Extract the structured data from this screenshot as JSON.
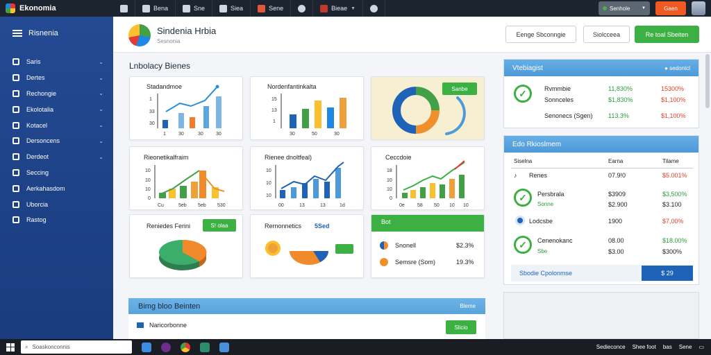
{
  "topbar": {
    "app_name": "Ekonomia",
    "tabs": [
      {
        "label": "",
        "icon": "tools-icon"
      },
      {
        "label": "Bena",
        "icon": "app-icon"
      },
      {
        "label": "Sne",
        "icon": "app-icon"
      },
      {
        "label": "Siea",
        "icon": "app-icon"
      },
      {
        "label": "Sene",
        "icon": "app-icon"
      },
      {
        "label": "",
        "icon": "circle-icon"
      },
      {
        "label": "Bieae",
        "icon": "app-icon"
      },
      {
        "label": "",
        "icon": "gear-icon"
      }
    ],
    "search_label": "Senhole",
    "action_label": "Gaen",
    "colors": {
      "bar": "#1c2430",
      "accent": "#f05a22"
    }
  },
  "sidebar": {
    "title": "Risnenia",
    "items": [
      {
        "label": "Saris"
      },
      {
        "label": "Dertes"
      },
      {
        "label": "Rechongie"
      },
      {
        "label": "Ekolotalia"
      },
      {
        "label": "Kotacel"
      },
      {
        "label": "Dersoncens"
      },
      {
        "label": "Derdeot"
      },
      {
        "label": "Seccing"
      },
      {
        "label": "Aerkahasdom"
      },
      {
        "label": "Uborcia"
      },
      {
        "label": "Rastog"
      }
    ],
    "colors": {
      "bg": "#234a93"
    }
  },
  "header": {
    "title": "Sindenia Hrbia",
    "subtitle": "Sesnonia",
    "btn1": "Eenge Sbconngie",
    "btn2": "Siolcceea",
    "btn3": "Re toal Sbeiten"
  },
  "section": {
    "title": "Lnbolacy Bienes"
  },
  "cards": {
    "c1": {
      "title": "Stadandmoe",
      "ticks": [
        "1",
        "33",
        "30"
      ],
      "xticks": [
        "1",
        "30",
        "30",
        "30"
      ]
    },
    "c2": {
      "title": "Nordenfantinkalta",
      "ticks": [
        "15",
        "13",
        "1"
      ],
      "xticks": [
        "30",
        "50",
        "30"
      ]
    },
    "c3": {
      "chip": "Sanbe"
    },
    "c4": {
      "title": "Rieonetikalfraim",
      "ticks": [
        "10",
        "10",
        "10",
        "0"
      ],
      "xticks": [
        "Cu",
        "5eb",
        "5eb",
        "530"
      ]
    },
    "c5": {
      "title": "Rienee dnoltfeal)",
      "ticks": [
        "10",
        "10",
        "10"
      ],
      "xticks": [
        "00",
        "13",
        "13",
        "1d"
      ]
    },
    "c6": {
      "title": "Ceccdoie",
      "ticks": [
        "18",
        "10",
        "10",
        "0"
      ],
      "xticks": [
        "0e",
        "58",
        "50",
        "10",
        "10"
      ]
    },
    "c7": {
      "title": "Reniedes Ferini",
      "chip": "S! olaa"
    },
    "c8": {
      "title": "Rernonnetics",
      "value": "5Sed"
    },
    "c9": {
      "header": "Bot",
      "r1_label": "Snonell",
      "r1_value": "$2.3%",
      "r2_label": "Semsre (Som)",
      "r2_value": "19.3%"
    }
  },
  "banner": {
    "title": "Bimg bloo Beinten",
    "btn": "Bleme",
    "sub": "Naricorbonne",
    "sub_btn": "Slicio"
  },
  "overview": {
    "title": "Vtebiagist",
    "link": "sedontcl",
    "rows": [
      {
        "label": "Rvmmbie",
        "v1": "11,830%",
        "v2": "15300%"
      },
      {
        "label": "Sonnceles",
        "v1": "$1,830%",
        "v2": "$1,100%"
      },
      {
        "label": "Senonecs (Sgen)",
        "v1": "113.3%",
        "v2": "$1,100%"
      }
    ]
  },
  "details": {
    "title": "Edo Rkioslmem",
    "headers": [
      "Siselna",
      "Earna",
      "Tilame"
    ],
    "rows": [
      {
        "label": "Renes",
        "sub": "",
        "v1": "07.9!0",
        "v2": "$5.001%"
      },
      {
        "label": "Persbrala",
        "sub": "Sonne",
        "v1": "$3909",
        "v2": "$3,500%"
      },
      {
        "label": "",
        "sub": "",
        "v1": "$2.900",
        "v2": "$3.100"
      },
      {
        "label": "Lodcsbe",
        "sub": "",
        "v1": "1900",
        "v2": "$7,00%"
      },
      {
        "label": "Cenenokanc",
        "sub": "Sbe",
        "v1": "08.00",
        "v2": "$18.00%"
      },
      {
        "label": "",
        "sub": "",
        "v1": "$3.00",
        "v2": "$300%"
      }
    ],
    "footer_label": "Sbodie Cpolonmse",
    "footer_btn": "$ 29"
  },
  "taskbar": {
    "search": "Soaskonconnis",
    "tray": [
      "Sedieconce",
      "Shee foot",
      "bas",
      "Sene"
    ]
  }
}
